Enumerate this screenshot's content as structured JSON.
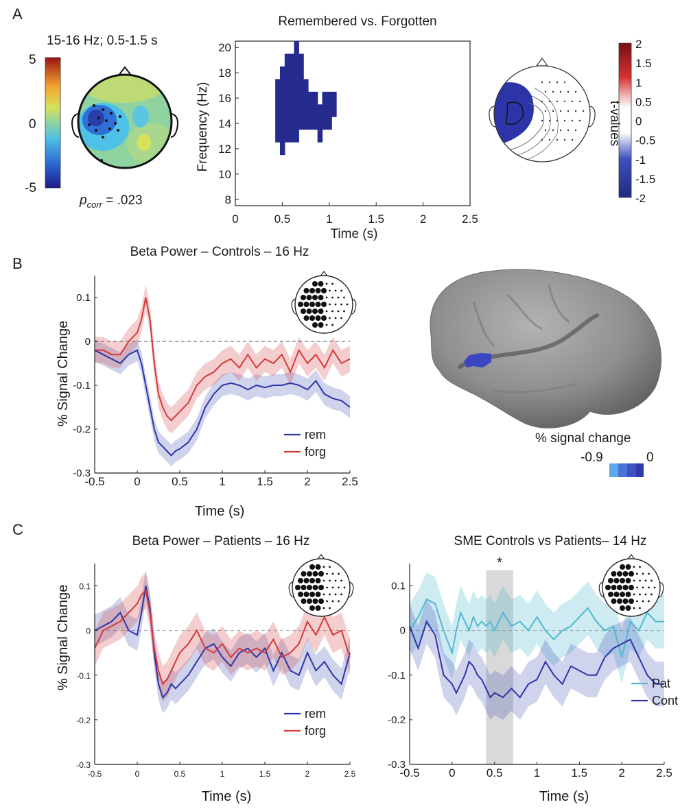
{
  "panel_letters": {
    "a": "A",
    "b": "B",
    "c": "C"
  },
  "panel_a": {
    "topo_title": "15-16 Hz; 0.5-1.5 s",
    "topo_colorbar_ticks": [
      "5",
      "0",
      "-5"
    ],
    "p_label": "p",
    "p_subscript": "corr",
    "p_value": " = .023",
    "tf_title": "Remembered vs. Forgotten",
    "tf_xlabel": "Time (s)",
    "tf_ylabel": "Frequency  (Hz)",
    "tvalue_label": "t-values",
    "tvalue_ticks": [
      "2",
      "1.5",
      "1",
      "0.5",
      "0",
      "-0.5",
      "-1",
      "-1.5",
      "-2"
    ]
  },
  "panel_b": {
    "brain_scale_label": "% signal change",
    "brain_scale_min": "-0.9",
    "brain_scale_max": "0"
  },
  "colors": {
    "rem": "#2b35a8",
    "forg": "#d23a3a",
    "pat": "#4fb8cf",
    "cont": "#2b35a8",
    "tf_cluster": "#252b8e"
  },
  "chart_data": [
    {
      "id": "tf",
      "type": "heatmap",
      "title": "Remembered vs. Forgotten",
      "xlabel": "Time (s)",
      "ylabel": "Frequency  (Hz)",
      "xlim": [
        0,
        2.5
      ],
      "ylim": [
        7.5,
        20.5
      ],
      "xticks": [
        "0",
        "0.5",
        "1",
        "1.5",
        "2",
        "2.5"
      ],
      "yticks": [
        "8",
        "10",
        "12",
        "14",
        "16",
        "18",
        "20"
      ],
      "cluster_columns": [
        {
          "t": 0.45,
          "fmin": 12.5,
          "fmax": 17.5
        },
        {
          "t": 0.5,
          "fmin": 11.5,
          "fmax": 18.5
        },
        {
          "t": 0.55,
          "fmin": 12.5,
          "fmax": 19.5
        },
        {
          "t": 0.6,
          "fmin": 12.5,
          "fmax": 19.5
        },
        {
          "t": 0.65,
          "fmin": 12.5,
          "fmax": 20.5
        },
        {
          "t": 0.7,
          "fmin": 13.5,
          "fmax": 19.5
        },
        {
          "t": 0.75,
          "fmin": 13.5,
          "fmax": 17.5
        },
        {
          "t": 0.8,
          "fmin": 13.5,
          "fmax": 16.5
        },
        {
          "t": 0.85,
          "fmin": 13.5,
          "fmax": 16.5
        },
        {
          "t": 0.9,
          "fmin": 12.5,
          "fmax": 15.5
        },
        {
          "t": 0.95,
          "fmin": 13.5,
          "fmax": 16.5
        },
        {
          "t": 1.0,
          "fmin": 13.5,
          "fmax": 16.5
        },
        {
          "t": 1.05,
          "fmin": 14.5,
          "fmax": 16.5
        }
      ]
    },
    {
      "id": "b",
      "type": "line",
      "title": "Beta Power – Controls – 16 Hz",
      "xlabel": "Time (s)",
      "ylabel": "% Signal Change",
      "xlim": [
        -0.5,
        2.5
      ],
      "ylim": [
        -0.3,
        0.15
      ],
      "xticks": [
        "-0.5",
        "0",
        "0.5",
        "1",
        "1.5",
        "2",
        "2.5"
      ],
      "yticks": [
        "0.1",
        "0",
        "-0.1",
        "-0.2",
        "-0.3"
      ],
      "x": [
        -0.5,
        -0.4,
        -0.3,
        -0.2,
        -0.1,
        0.0,
        0.05,
        0.1,
        0.15,
        0.2,
        0.25,
        0.3,
        0.35,
        0.4,
        0.45,
        0.5,
        0.6,
        0.7,
        0.8,
        0.9,
        1.0,
        1.1,
        1.2,
        1.3,
        1.4,
        1.5,
        1.6,
        1.7,
        1.8,
        1.9,
        2.0,
        2.1,
        2.2,
        2.3,
        2.4,
        2.5
      ],
      "series": [
        {
          "name": "rem",
          "color": "#2b35a8",
          "band": 0.025,
          "values": [
            -0.02,
            -0.03,
            -0.04,
            -0.05,
            -0.03,
            -0.02,
            -0.05,
            -0.1,
            -0.15,
            -0.2,
            -0.23,
            -0.24,
            -0.25,
            -0.26,
            -0.25,
            -0.245,
            -0.23,
            -0.2,
            -0.15,
            -0.12,
            -0.1,
            -0.095,
            -0.1,
            -0.11,
            -0.1,
            -0.105,
            -0.1,
            -0.1,
            -0.095,
            -0.1,
            -0.11,
            -0.09,
            -0.12,
            -0.13,
            -0.135,
            -0.15
          ]
        },
        {
          "name": "forg",
          "color": "#d23a3a",
          "band": 0.03,
          "values": [
            -0.02,
            -0.02,
            -0.03,
            -0.03,
            0.0,
            0.02,
            0.05,
            0.1,
            0.05,
            -0.05,
            -0.12,
            -0.15,
            -0.17,
            -0.18,
            -0.17,
            -0.16,
            -0.14,
            -0.1,
            -0.08,
            -0.07,
            -0.05,
            -0.04,
            -0.06,
            -0.03,
            -0.06,
            -0.04,
            -0.05,
            -0.03,
            -0.07,
            -0.02,
            -0.05,
            -0.03,
            -0.06,
            -0.02,
            -0.05,
            -0.04
          ]
        }
      ]
    },
    {
      "id": "c1",
      "type": "line",
      "title": "Beta Power – Patients – 16 Hz",
      "xlabel": "Time (s)",
      "ylabel": "% Signal Change",
      "xlim": [
        -0.5,
        2.5
      ],
      "ylim": [
        -0.3,
        0.15
      ],
      "xticks": [
        "-0.5",
        "0",
        "0.5",
        "1",
        "1.5",
        "2",
        "2.5"
      ],
      "yticks": [
        "0.1",
        "0",
        "-0.1",
        "-0.2",
        "-0.3"
      ],
      "x": [
        -0.5,
        -0.4,
        -0.3,
        -0.2,
        -0.1,
        0.0,
        0.05,
        0.1,
        0.15,
        0.2,
        0.25,
        0.3,
        0.35,
        0.4,
        0.45,
        0.5,
        0.6,
        0.7,
        0.8,
        0.9,
        1.0,
        1.1,
        1.2,
        1.3,
        1.4,
        1.5,
        1.6,
        1.7,
        1.8,
        1.9,
        2.0,
        2.1,
        2.2,
        2.3,
        2.4,
        2.5
      ],
      "series": [
        {
          "name": "rem",
          "color": "#2b35a8",
          "band": 0.035,
          "values": [
            0.0,
            0.01,
            0.02,
            0.04,
            0.0,
            -0.01,
            0.04,
            0.1,
            0.05,
            -0.05,
            -0.12,
            -0.15,
            -0.14,
            -0.12,
            -0.13,
            -0.12,
            -0.1,
            -0.07,
            -0.04,
            -0.03,
            -0.06,
            -0.08,
            -0.05,
            -0.04,
            -0.06,
            -0.04,
            -0.09,
            -0.05,
            -0.09,
            -0.1,
            -0.05,
            -0.09,
            -0.07,
            -0.1,
            -0.12,
            -0.05
          ]
        },
        {
          "name": "forg",
          "color": "#d23a3a",
          "band": 0.04,
          "values": [
            -0.04,
            0.0,
            0.01,
            0.02,
            0.04,
            0.06,
            0.08,
            0.09,
            0.04,
            -0.04,
            -0.09,
            -0.12,
            -0.11,
            -0.09,
            -0.07,
            -0.05,
            -0.03,
            0.0,
            -0.04,
            -0.05,
            -0.03,
            -0.06,
            -0.04,
            -0.05,
            -0.04,
            -0.05,
            -0.02,
            -0.06,
            -0.05,
            -0.03,
            0.02,
            -0.01,
            0.03,
            -0.01,
            0.0,
            -0.06
          ]
        }
      ]
    },
    {
      "id": "c2",
      "type": "line",
      "title": "SME Controls vs  Patients– 14 Hz",
      "xlabel": "Time (s)",
      "ylabel": "",
      "xlim": [
        -0.5,
        2.5
      ],
      "ylim": [
        -0.3,
        0.15
      ],
      "xticks": [
        "-0.5",
        "0",
        "0.5",
        "1",
        "1.5",
        "2",
        "2.5"
      ],
      "yticks": [
        "0.1",
        "0",
        "-0.1",
        "-0.2",
        "-0.3"
      ],
      "significance": {
        "x0": 0.4,
        "x1": 0.72,
        "marker": "*"
      },
      "x": [
        -0.5,
        -0.4,
        -0.3,
        -0.2,
        -0.1,
        0.0,
        0.05,
        0.1,
        0.15,
        0.2,
        0.25,
        0.3,
        0.35,
        0.4,
        0.45,
        0.5,
        0.6,
        0.7,
        0.8,
        0.9,
        1.0,
        1.1,
        1.2,
        1.3,
        1.4,
        1.5,
        1.6,
        1.7,
        1.8,
        1.9,
        2.0,
        2.1,
        2.2,
        2.3,
        2.4,
        2.5
      ],
      "series": [
        {
          "name": "Pat",
          "color": "#4fb8cf",
          "band": 0.06,
          "values": [
            0.0,
            0.03,
            0.07,
            0.06,
            0.0,
            -0.05,
            0.0,
            0.04,
            0.02,
            0.0,
            0.03,
            0.01,
            0.02,
            0.01,
            0.02,
            0.0,
            0.04,
            0.01,
            0.02,
            0.0,
            0.03,
            0.0,
            -0.02,
            0.0,
            0.01,
            0.03,
            0.05,
            0.02,
            0.0,
            0.01,
            -0.06,
            0.02,
            0.0,
            0.04,
            0.02,
            0.02
          ]
        },
        {
          "name": "Cont",
          "color": "#2b35a8",
          "band": 0.05,
          "values": [
            0.01,
            -0.04,
            0.02,
            -0.01,
            -0.1,
            -0.12,
            -0.14,
            -0.12,
            -0.1,
            -0.07,
            -0.08,
            -0.1,
            -0.11,
            -0.13,
            -0.15,
            -0.14,
            -0.15,
            -0.13,
            -0.15,
            -0.12,
            -0.11,
            -0.07,
            -0.1,
            -0.12,
            -0.08,
            -0.09,
            -0.1,
            -0.1,
            -0.06,
            -0.04,
            -0.03,
            -0.02,
            -0.06,
            -0.1,
            -0.12,
            -0.12
          ]
        }
      ]
    }
  ]
}
